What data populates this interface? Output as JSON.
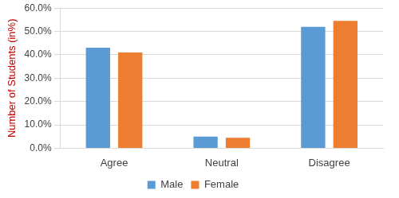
{
  "chart_data": {
    "type": "bar",
    "y_label": "Number of Students (in%)",
    "categories": [
      "Agree",
      "Neutral",
      "Disagree"
    ],
    "series": [
      {
        "name": "Male",
        "color": "#5b9bd5",
        "values": [
          43,
          5,
          52
        ]
      },
      {
        "name": "Female",
        "color": "#ed7d31",
        "values": [
          41,
          4.5,
          54.5
        ]
      }
    ],
    "ylim": [
      0,
      60
    ],
    "yticks": [
      {
        "value": 0,
        "label": "0.0%"
      },
      {
        "value": 10,
        "label": "10.0%"
      },
      {
        "value": 20,
        "label": "20.0%"
      },
      {
        "value": 30,
        "label": "30.0%"
      },
      {
        "value": 40,
        "label": "40.0%"
      },
      {
        "value": 50,
        "label": "50.0%"
      },
      {
        "value": 60,
        "label": "60.0%"
      }
    ],
    "grid": true,
    "legend": "bottom"
  }
}
